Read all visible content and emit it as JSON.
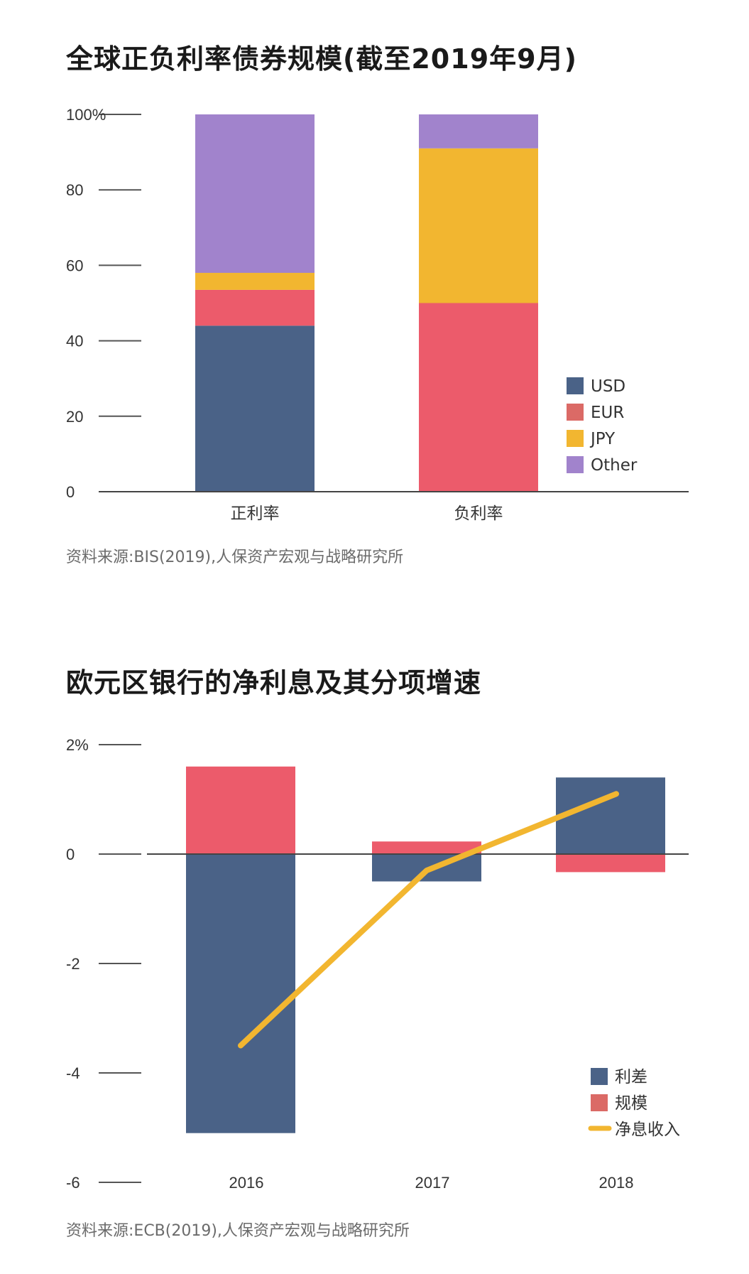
{
  "chart_data": [
    {
      "type": "bar",
      "stacked": true,
      "title": "全球正负利率债券规模(截至2019年9月)",
      "source": "资料来源:BIS(2019),人保资产宏观与战略研究所",
      "categories": [
        "正利率",
        "负利率"
      ],
      "y_ticks": [
        "100%",
        "80",
        "60",
        "40",
        "20",
        "0"
      ],
      "ylim": [
        0,
        100
      ],
      "grid": false,
      "legend_position": "bottom-right",
      "series": [
        {
          "name": "USD",
          "color": "#4a6287",
          "values": [
            44,
            0
          ]
        },
        {
          "name": "EUR",
          "color": "#ec5b6b",
          "values": [
            9.5,
            50
          ]
        },
        {
          "name": "JPY",
          "color": "#f2b630",
          "values": [
            4.5,
            41
          ]
        },
        {
          "name": "Other",
          "color": "#a183cc",
          "values": [
            42,
            9
          ]
        }
      ],
      "legend_swatch_colors": [
        "#4a6287",
        "#db6a66",
        "#f2b630",
        "#a183cc"
      ]
    },
    {
      "type": "bar",
      "stacked": true,
      "title": "欧元区银行的净利息及其分项增速",
      "source": "资料来源:ECB(2019),人保资产宏观与战略研究所",
      "categories": [
        "2016",
        "2017",
        "2018"
      ],
      "y_ticks": [
        "2%",
        "0",
        "-2",
        "-4",
        "-6"
      ],
      "ylim": [
        -6,
        2
      ],
      "grid": false,
      "legend_position": "bottom-right",
      "series": [
        {
          "name": "利差",
          "type": "bar",
          "color": "#4a6287",
          "values": [
            -5.1,
            -0.5,
            1.4
          ]
        },
        {
          "name": "规模",
          "type": "bar",
          "color": "#ec5b6b",
          "values": [
            1.6,
            0.23,
            -0.33
          ]
        },
        {
          "name": "净息收入",
          "type": "line",
          "color": "#f2b630",
          "values": [
            -3.5,
            -0.3,
            1.1
          ]
        }
      ],
      "legend_swatch_colors": [
        "#4a6287",
        "#db6a66",
        "#f2b630"
      ]
    }
  ]
}
